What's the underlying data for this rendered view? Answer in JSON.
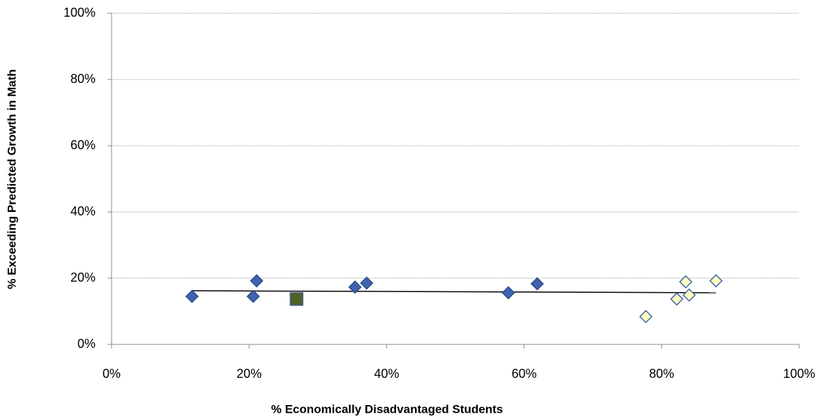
{
  "chart_data": {
    "type": "scatter",
    "x_label": "% Economically Disadvantaged Students",
    "y_label": "% Exceeding Predicted Growth in Math",
    "xlim": [
      0,
      100
    ],
    "ylim": [
      0,
      100
    ],
    "xticks": [
      {
        "value": 0,
        "label": "0%"
      },
      {
        "value": 20,
        "label": "20%"
      },
      {
        "value": 40,
        "label": "40%"
      },
      {
        "value": 60,
        "label": "60%"
      },
      {
        "value": 80,
        "label": "80%"
      },
      {
        "value": 100,
        "label": "100%"
      }
    ],
    "yticks": [
      {
        "value": 0,
        "label": "0%"
      },
      {
        "value": 20,
        "label": "20%"
      },
      {
        "value": 40,
        "label": "40%"
      },
      {
        "value": 60,
        "label": "60%"
      },
      {
        "value": 80,
        "label": "80%"
      },
      {
        "value": 100,
        "label": "100%"
      }
    ],
    "grid": true,
    "series": [
      {
        "marker": "diamond",
        "color": "#3f63b0",
        "edge": "#2b4a8a",
        "x": [
          11.7,
          21.1,
          20.6,
          35.4,
          37.1,
          57.7,
          61.9
        ],
        "values": [
          14.5,
          19.2,
          14.5,
          17.3,
          18.5,
          15.6,
          18.3
        ]
      },
      {
        "marker": "square",
        "color": "#4f6228",
        "edge": "#4a5f8f",
        "x": [
          26.9
        ],
        "values": [
          13.7
        ]
      },
      {
        "marker": "diamond",
        "color": "#ffffc0",
        "edge": "#3f63b0",
        "x": [
          77.7,
          82.2,
          83.5,
          84.0,
          87.9
        ],
        "values": [
          8.4,
          13.7,
          18.9,
          14.9,
          19.2
        ]
      }
    ],
    "trendline": {
      "color": "#000000",
      "x": [
        11.7,
        87.9
      ],
      "values": [
        16.2,
        15.6
      ]
    }
  }
}
